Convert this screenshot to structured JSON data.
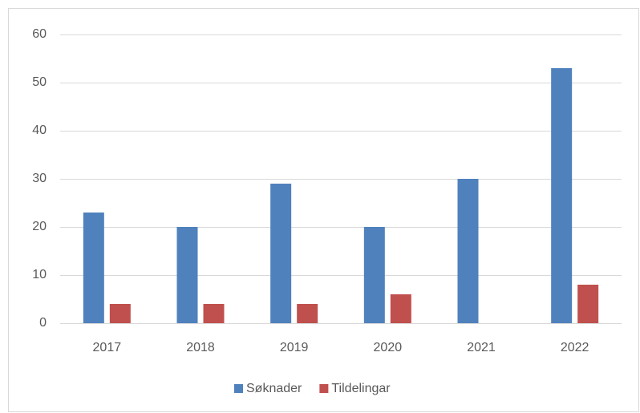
{
  "chart_data": {
    "type": "bar",
    "categories": [
      "2017",
      "2018",
      "2019",
      "2020",
      "2021",
      "2022"
    ],
    "series": [
      {
        "name": "Søknader",
        "color": "#4f81bd",
        "values": [
          23,
          20,
          29,
          20,
          30,
          53
        ]
      },
      {
        "name": "Tildelingar",
        "color": "#c0504d",
        "values": [
          4,
          4,
          4,
          6,
          0,
          8
        ]
      }
    ],
    "ylim": [
      0,
      60
    ],
    "yticks": [
      0,
      10,
      20,
      30,
      40,
      50,
      60
    ],
    "grid": true,
    "legend": "bottom"
  }
}
